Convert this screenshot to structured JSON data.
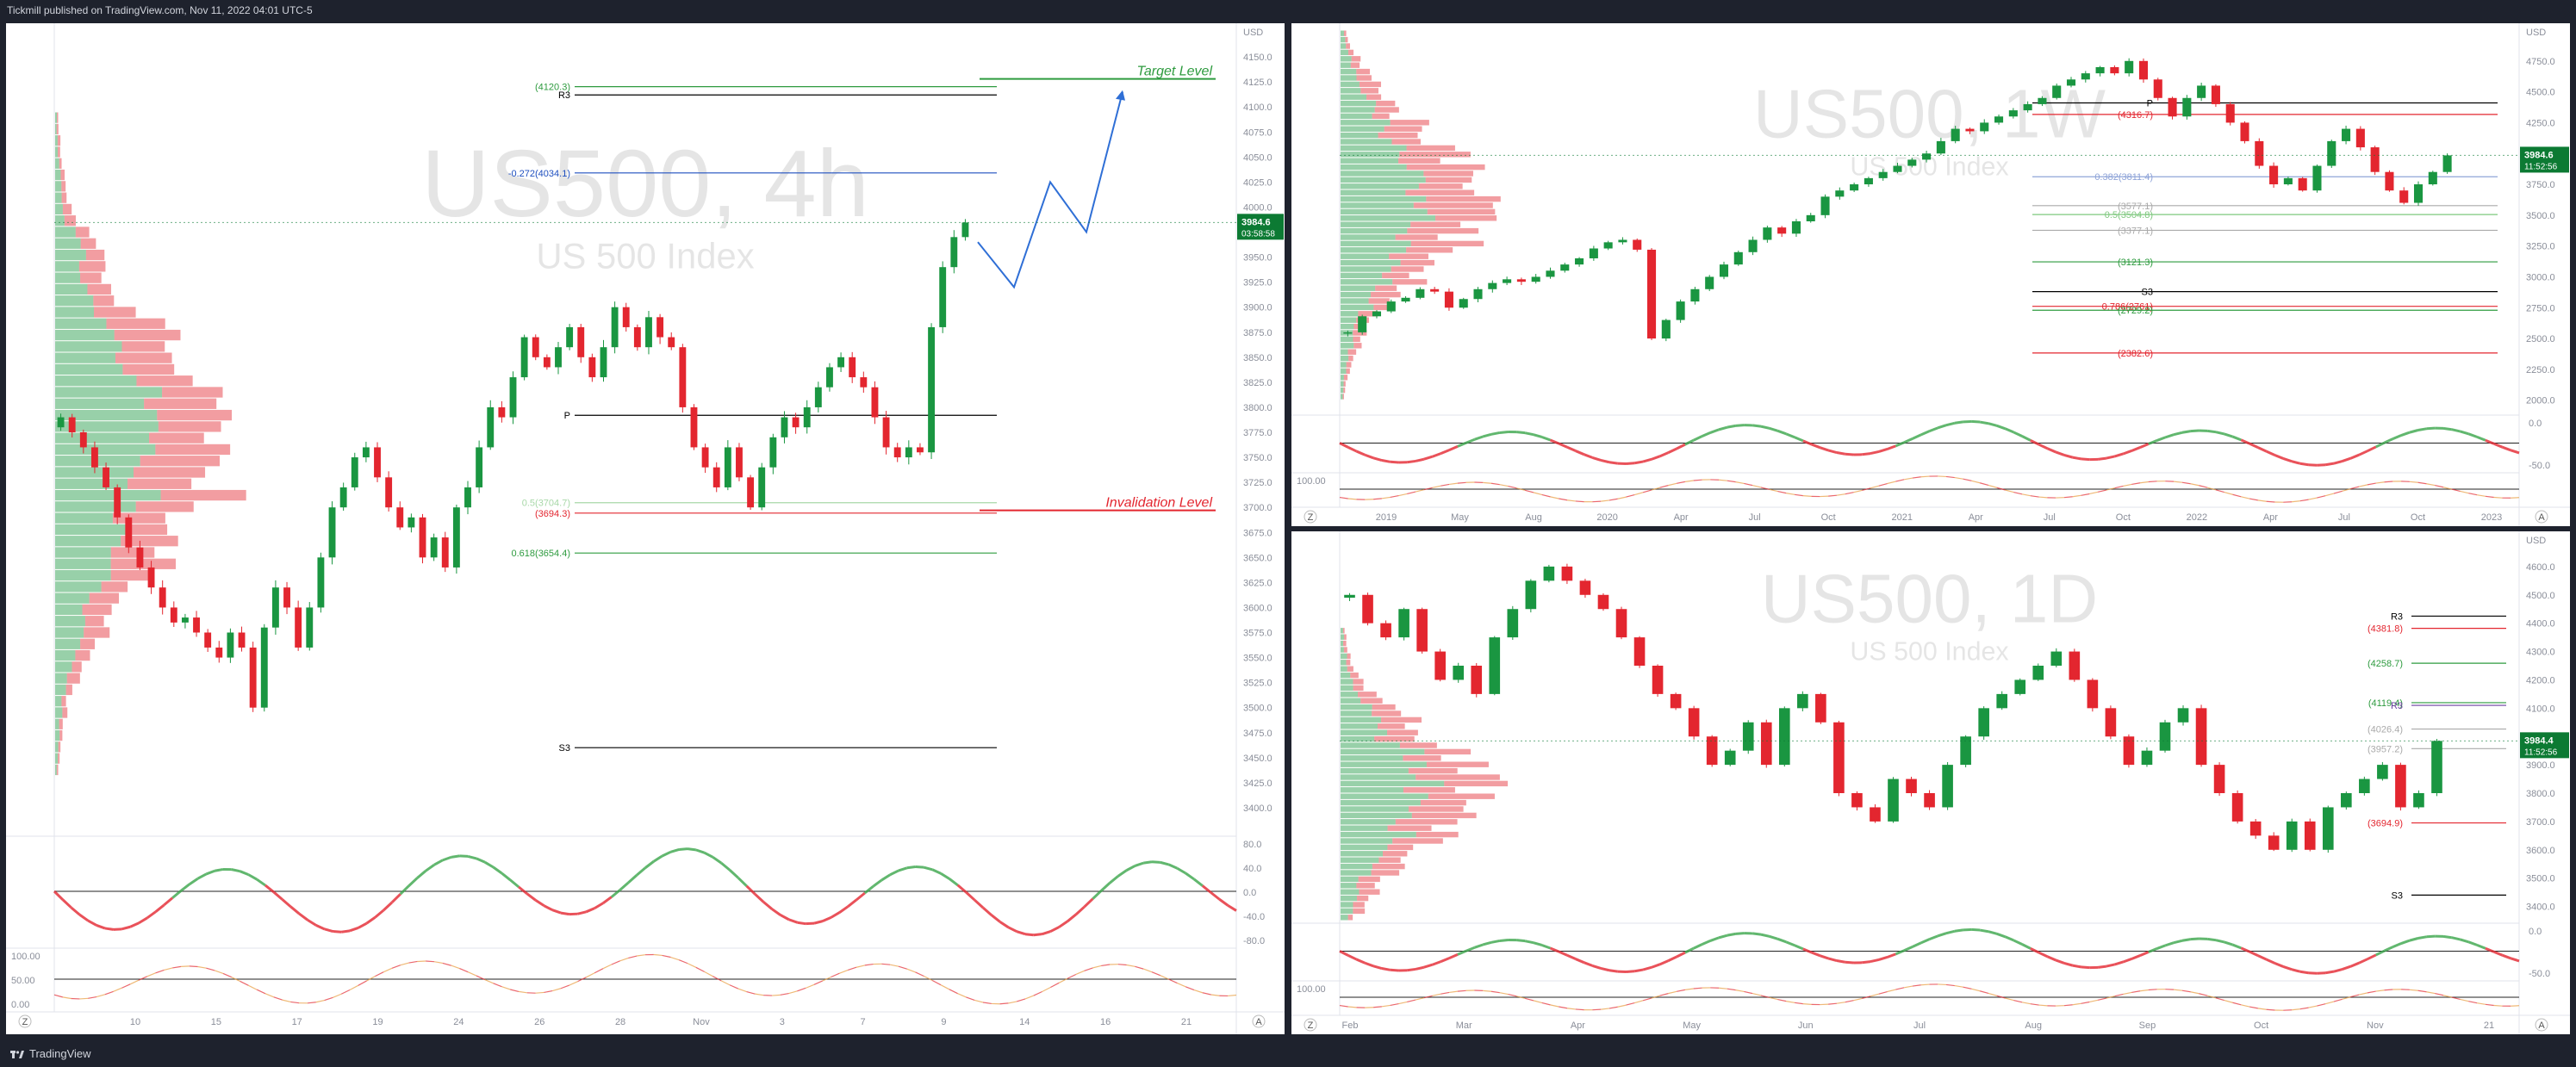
{
  "header": {
    "publisher": "Tickmill published on TradingView.com, Nov 11, 2022 04:01 UTC-5"
  },
  "footer": {
    "brand": "TradingView"
  },
  "colors": {
    "up": "#1a9641",
    "down": "#e3262f",
    "level_green": "#2e9b3f",
    "level_red": "#e3262f",
    "price_tag": "#0c7a33",
    "fib_blue": "#1e4fbf"
  },
  "icons": {
    "brand": "tradingview-logo-icon",
    "zoom": "zoom-button",
    "auto": "auto-scale-button"
  },
  "chart_data": [
    {
      "type": "candlestick",
      "id": "4h",
      "watermark": "US500, 4h",
      "subtitle": "US 500 Index",
      "y_unit": "USD",
      "ylim": [
        3375,
        4175
      ],
      "y_ticks": [
        "4150.0",
        "4125.0",
        "4100.0",
        "4075.0",
        "4050.0",
        "4025.0",
        "4000.0",
        "3975.0",
        "3950.0",
        "3925.0",
        "3900.0",
        "3875.0",
        "3850.0",
        "3825.0",
        "3800.0",
        "3775.0",
        "3750.0",
        "3725.0",
        "3700.0",
        "3675.0",
        "3650.0",
        "3625.0",
        "3600.0",
        "3575.0",
        "3550.0",
        "3525.0",
        "3500.0",
        "3475.0",
        "3450.0",
        "3425.0",
        "3400.0"
      ],
      "x_ticks": [
        "10",
        "15",
        "17",
        "19",
        "24",
        "26",
        "28",
        "Nov",
        "3",
        "7",
        "9",
        "14",
        "16",
        "21"
      ],
      "price_tag": {
        "price": "3984.6",
        "countdown": "03:58:58",
        "value": 3984.6
      },
      "levels": [
        {
          "label": "(4120.3)",
          "value": 4120.3,
          "color": "#2e9b3f"
        },
        {
          "label": "R3",
          "value": 4112,
          "color": "#000000"
        },
        {
          "label": "-0.272(4034.1)",
          "value": 4034.1,
          "color": "#1e4fbf"
        },
        {
          "label": "(3694.3)",
          "value": 3694.3,
          "color": "#e3262f"
        },
        {
          "label": "0.5(3704.7)",
          "value": 3704.7,
          "color": "#a8d8a8"
        },
        {
          "label": "0.618(3654.4)",
          "value": 3654.4,
          "color": "#2e9b3f"
        },
        {
          "label": "S3",
          "value": 3460,
          "color": "#000000"
        },
        {
          "label": "P",
          "value": 3792,
          "color": "#000000"
        }
      ],
      "annotations": [
        {
          "text": "Target Level",
          "value": 4128,
          "color": "#2e9b3f"
        },
        {
          "text": "Invalidation Level",
          "value": 3697,
          "color": "#e3262f"
        }
      ],
      "projection": [
        3965,
        3920,
        4025,
        3975,
        4115
      ],
      "closes": [
        3790,
        3775,
        3760,
        3740,
        3720,
        3690,
        3660,
        3640,
        3620,
        3600,
        3585,
        3590,
        3575,
        3560,
        3550,
        3575,
        3560,
        3500,
        3580,
        3620,
        3600,
        3560,
        3600,
        3650,
        3700,
        3720,
        3750,
        3760,
        3730,
        3700,
        3680,
        3690,
        3650,
        3670,
        3640,
        3700,
        3720,
        3760,
        3800,
        3790,
        3830,
        3870,
        3850,
        3840,
        3860,
        3880,
        3850,
        3830,
        3860,
        3900,
        3880,
        3860,
        3890,
        3870,
        3860,
        3800,
        3760,
        3740,
        3720,
        3760,
        3730,
        3700,
        3740,
        3770,
        3790,
        3780,
        3800,
        3820,
        3840,
        3850,
        3830,
        3820,
        3790,
        3760,
        3750,
        3760,
        3755,
        3880,
        3940,
        3970,
        3984.6
      ],
      "indicator_rsi_ticks": [
        "80.0",
        "40.0",
        "0.0",
        "-40.0",
        "-80.0"
      ],
      "indicator_stoch_ticks": [
        "100.00",
        "50.00",
        "0.00"
      ]
    },
    {
      "type": "candlestick",
      "id": "1w",
      "watermark": "US500, 1W",
      "subtitle": "US 500 Index",
      "y_unit": "USD",
      "ylim": [
        1900,
        5000
      ],
      "y_ticks": [
        "4750.0",
        "4500.0",
        "4250.0",
        "4000.0",
        "3750.0",
        "3500.0",
        "3250.0",
        "3000.0",
        "2750.0",
        "2500.0",
        "2250.0",
        "2000.0"
      ],
      "x_ticks": [
        "2019",
        "May",
        "Aug",
        "2020",
        "Apr",
        "Jul",
        "Oct",
        "2021",
        "Apr",
        "Jul",
        "Oct",
        "2022",
        "Apr",
        "Jul",
        "Oct",
        "2023"
      ],
      "price_tag": {
        "price": "3984.6",
        "countdown": "11:52:56",
        "value": 3984.6
      },
      "levels": [
        {
          "label": "0.382(3811.4)",
          "value": 3811.4,
          "color": "#8fa4d8"
        },
        {
          "label": "0.5(3504.8)",
          "value": 3504.8,
          "color": "#7fc87f"
        },
        {
          "label": "0.786(2761)",
          "value": 2761,
          "color": "#e3262f"
        },
        {
          "label": "(3121.3)",
          "value": 3121.3,
          "color": "#2e9b3f"
        },
        {
          "label": "(2729.2)",
          "value": 2729.2,
          "color": "#2e9b3f"
        },
        {
          "label": "(2382.6)",
          "value": 2382.6,
          "color": "#e3262f"
        },
        {
          "label": "S3",
          "value": 2880,
          "color": "#000000"
        },
        {
          "label": "P",
          "value": 4410,
          "color": "#000000"
        },
        {
          "label": "(3577.1)",
          "value": 3577.1,
          "color": "#aaaaaa"
        },
        {
          "label": "(3377.1)",
          "value": 3377.1,
          "color": "#aaaaaa"
        },
        {
          "label": "(4316.7)",
          "value": 4316.7,
          "color": "#e3262f"
        }
      ],
      "closes": [
        2550,
        2680,
        2720,
        2800,
        2830,
        2900,
        2880,
        2750,
        2820,
        2900,
        2950,
        2980,
        2960,
        3000,
        3050,
        3100,
        3150,
        3230,
        3280,
        3300,
        3220,
        2500,
        2650,
        2800,
        2900,
        3000,
        3100,
        3200,
        3300,
        3400,
        3350,
        3450,
        3500,
        3650,
        3700,
        3750,
        3800,
        3850,
        3900,
        3950,
        4000,
        4100,
        4200,
        4180,
        4250,
        4300,
        4350,
        4400,
        4450,
        4550,
        4600,
        4650,
        4700,
        4650,
        4750,
        4600,
        4450,
        4300,
        4450,
        4550,
        4400,
        4250,
        4100,
        3900,
        3750,
        3800,
        3700,
        3900,
        4100,
        4200,
        4050,
        3850,
        3700,
        3600,
        3750,
        3850,
        3984.6
      ]
    },
    {
      "type": "candlestick",
      "id": "1d",
      "watermark": "US500, 1D",
      "subtitle": "US 500 Index",
      "y_unit": "USD",
      "ylim": [
        3350,
        4700
      ],
      "y_ticks": [
        "4600.0",
        "4500.0",
        "4400.0",
        "4300.0",
        "4200.0",
        "4100.0",
        "4000.0",
        "3900.0",
        "3800.0",
        "3700.0",
        "3600.0",
        "3500.0",
        "3400.0"
      ],
      "x_ticks": [
        "Feb",
        "Mar",
        "Apr",
        "May",
        "Jun",
        "Jul",
        "Aug",
        "Sep",
        "Oct",
        "Nov",
        "21"
      ],
      "price_tag": {
        "price": "3984.4",
        "countdown": "11:52:56",
        "value": 3984.4
      },
      "levels": [
        {
          "label": "R3",
          "value": 4425,
          "color": "#000000"
        },
        {
          "label": "(4381.8)",
          "value": 4381.8,
          "color": "#e3262f"
        },
        {
          "label": "(4258.7)",
          "value": 4258.7,
          "color": "#2e9b3f"
        },
        {
          "label": "(4119.4)",
          "value": 4119.4,
          "color": "#2e9b3f"
        },
        {
          "label": "(4026.4)",
          "value": 4026.4,
          "color": "#aaaaaa"
        },
        {
          "label": "(3957.2)",
          "value": 3957.2,
          "color": "#aaaaaa"
        },
        {
          "label": "(3694.9)",
          "value": 3694.9,
          "color": "#e3262f"
        },
        {
          "label": "S3",
          "value": 3440,
          "color": "#000000"
        },
        {
          "label": "R3",
          "value": 4110,
          "color": "#6b3fa0"
        }
      ],
      "closes": [
        4500,
        4400,
        4350,
        4450,
        4300,
        4200,
        4250,
        4150,
        4350,
        4450,
        4550,
        4600,
        4550,
        4500,
        4450,
        4350,
        4250,
        4150,
        4100,
        4000,
        3900,
        3950,
        4050,
        3900,
        4100,
        4150,
        4050,
        3800,
        3750,
        3700,
        3850,
        3800,
        3750,
        3900,
        4000,
        4100,
        4150,
        4200,
        4250,
        4300,
        4200,
        4100,
        4000,
        3900,
        3950,
        4050,
        4100,
        3900,
        3800,
        3700,
        3650,
        3600,
        3700,
        3600,
        3750,
        3800,
        3850,
        3900,
        3750,
        3800,
        3984.4
      ]
    }
  ]
}
